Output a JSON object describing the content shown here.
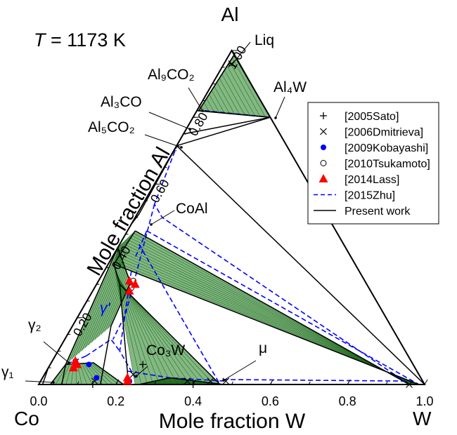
{
  "chart_data": {
    "type": "ternary-isothermal-section",
    "temperature_label": {
      "sym": "T",
      "rest": " = 1173 K"
    },
    "apex_labels": {
      "top": "Al",
      "bottom_left": "Co",
      "bottom_right": "W"
    },
    "xlabel": "Mole fraction W",
    "ylabel": "Mole fraction Al",
    "x_ticks": [
      "0.0",
      "0.2",
      "0.4",
      "0.6",
      "0.8",
      "1.0"
    ],
    "y_ticks": [
      {
        "label": "0.20",
        "value": 0.2
      },
      {
        "label": "0.40",
        "value": 0.4
      },
      {
        "label": "0.60",
        "value": 0.6
      },
      {
        "label": "0.80",
        "value": 0.8
      },
      {
        "label": "1.00",
        "value": 1.0
      }
    ],
    "phase_labels": [
      {
        "name": "Liq",
        "anchor": {
          "W": 0.005,
          "Al": 0.965
        }
      },
      {
        "name": "Al₉CO₂",
        "anchor": {
          "W": 0.0,
          "Al": 0.818
        }
      },
      {
        "name": "Al₄W",
        "anchor": {
          "W": 0.2,
          "Al": 0.8
        }
      },
      {
        "name": "Al₃CO",
        "anchor": {
          "W": 0.0,
          "Al": 0.75
        }
      },
      {
        "name": "Al₅CO₂",
        "anchor": {
          "W": 0.0,
          "Al": 0.715
        }
      },
      {
        "name": "CoAl",
        "anchor": {
          "W": 0.01,
          "Al": 0.5
        }
      },
      {
        "name": "γ₂",
        "anchor": {
          "W": 0.025,
          "Al": 0.12
        }
      },
      {
        "name": "γ₁",
        "anchor": {
          "W": 0.0,
          "Al": 0.01
        }
      },
      {
        "name": "γ'",
        "anchor": {
          "W": 0.125,
          "Al": 0.15
        }
      },
      {
        "name": "Co₃W",
        "anchor": {
          "W": 0.225,
          "Al": 0.005
        }
      },
      {
        "name": "μ",
        "anchor": {
          "W": 0.47,
          "Al": 0.01
        }
      }
    ],
    "legend": {
      "placement": "right",
      "entries": [
        {
          "label": "[2005Sato]",
          "marker": "plus",
          "color": "#000000"
        },
        {
          "label": "[2006Dmitrieva]",
          "marker": "cross",
          "color": "#000000"
        },
        {
          "label": "[2009Kobayashi]",
          "marker": "filled-circle",
          "color": "#0000ff"
        },
        {
          "label": "[2010Tsukamoto]",
          "marker": "open-circle",
          "color": "#000000"
        },
        {
          "label": "[2014Lass]",
          "marker": "filled-triangle",
          "color": "#ff0000"
        },
        {
          "label": "[2015Zhu]",
          "marker": "dashed-line",
          "color": "#0000ff"
        },
        {
          "label": "Present work",
          "marker": "solid-line",
          "color": "#000000"
        }
      ]
    },
    "tie_line_color": "#1e7d1e",
    "present_work_phase_boundaries": [
      [
        {
          "W": 0.0,
          "Al": 0.82
        },
        {
          "W": 0.005,
          "Al": 0.82
        },
        {
          "W": 0.013,
          "Al": 0.99
        },
        {
          "W": 0.0,
          "Al": 1.0
        }
      ],
      [
        {
          "W": 0.013,
          "Al": 0.99
        },
        {
          "W": 0.005,
          "Al": 0.82
        },
        {
          "W": 0.2,
          "Al": 0.8
        }
      ],
      [
        {
          "W": 0.0,
          "Al": 0.82
        },
        {
          "W": 0.2,
          "Al": 0.8
        }
      ],
      [
        {
          "W": 0.0,
          "Al": 0.75
        },
        {
          "W": 0.2,
          "Al": 0.8
        }
      ],
      [
        {
          "W": 0.0,
          "Al": 0.715
        },
        {
          "W": 0.2,
          "Al": 0.8
        }
      ],
      [
        {
          "W": 0.0,
          "Al": 0.715
        },
        {
          "W": 0.005,
          "Al": 0.51
        },
        {
          "W": 0.0,
          "Al": 0.48
        }
      ],
      [
        {
          "W": 0.0,
          "Al": 0.715
        },
        {
          "W": 1.0,
          "Al": 0.0
        }
      ],
      [
        {
          "W": 0.02,
          "Al": 0.46
        },
        {
          "W": 0.015,
          "Al": 0.36
        },
        {
          "W": 0.06,
          "Al": 0.3
        },
        {
          "W": 0.23,
          "Al": 0.005
        },
        {
          "W": 0.23,
          "Al": 0.0
        }
      ],
      [
        {
          "W": 0.02,
          "Al": 0.46
        },
        {
          "W": 0.96,
          "Al": 0.0
        },
        {
          "W": 1.0,
          "Al": 0.0
        }
      ],
      [
        {
          "W": 0.015,
          "Al": 0.36
        },
        {
          "W": 0.985,
          "Al": 0.0
        }
      ],
      [
        {
          "W": 0.06,
          "Al": 0.3
        },
        {
          "W": 0.47,
          "Al": 0.0
        }
      ],
      [
        {
          "W": 0.0,
          "Al": 0.41
        },
        {
          "W": 0.085,
          "Al": 0.305
        },
        {
          "W": 0.1,
          "Al": 0.175
        },
        {
          "W": 0.16,
          "Al": 0.0
        }
      ],
      [
        {
          "W": 0.0,
          "Al": 0.41
        },
        {
          "W": 0.04,
          "Al": 0.06
        },
        {
          "W": 0.06,
          "Al": 0.0
        }
      ],
      [
        {
          "W": 0.04,
          "Al": 0.06
        },
        {
          "W": 0.11,
          "Al": 0.065
        },
        {
          "W": 0.22,
          "Al": 0.0
        }
      ],
      [
        {
          "W": 0.04,
          "Al": 0.06
        },
        {
          "W": 0.03,
          "Al": 0.0
        }
      ],
      [
        {
          "W": 0.0,
          "Al": 0.05
        },
        {
          "W": 0.01,
          "Al": 0.0
        }
      ],
      [
        {
          "W": 0.26,
          "Al": 0.0
        },
        {
          "W": 0.33,
          "Al": 0.02
        },
        {
          "W": 0.48,
          "Al": 0.0
        }
      ]
    ],
    "present_work_tie_triangles": [
      {
        "corners": [
          {
            "W": 0.013,
            "Al": 0.99
          },
          {
            "W": 0.005,
            "Al": 0.82
          },
          {
            "W": 0.2,
            "Al": 0.8
          }
        ]
      },
      {
        "corners": [
          {
            "W": 0.02,
            "Al": 0.46
          },
          {
            "W": 0.015,
            "Al": 0.36
          },
          {
            "W": 0.985,
            "Al": 0.0
          },
          {
            "W": 0.96,
            "Al": 0.0
          }
        ]
      },
      {
        "corners": [
          {
            "W": 0.015,
            "Al": 0.36
          },
          {
            "W": 0.06,
            "Al": 0.3
          },
          {
            "W": 0.47,
            "Al": 0.0
          },
          {
            "W": 0.25,
            "Al": 0.0
          }
        ]
      },
      {
        "corners": [
          {
            "W": 0.0,
            "Al": 0.41
          },
          {
            "W": 0.085,
            "Al": 0.305
          },
          {
            "W": 0.1,
            "Al": 0.175
          },
          {
            "W": 0.04,
            "Al": 0.06
          }
        ]
      },
      {
        "corners": [
          {
            "W": 0.04,
            "Al": 0.06
          },
          {
            "W": 0.11,
            "Al": 0.065
          },
          {
            "W": 0.22,
            "Al": 0.0
          },
          {
            "W": 0.03,
            "Al": 0.0
          }
        ]
      },
      {
        "corners": [
          {
            "W": 0.02,
            "Al": 0.46
          },
          {
            "W": 0.015,
            "Al": 0.36
          },
          {
            "W": 0.0,
            "Al": 0.41
          }
        ]
      },
      {
        "corners": [
          {
            "W": 0.26,
            "Al": 0.0
          },
          {
            "W": 0.33,
            "Al": 0.02
          },
          {
            "W": 0.47,
            "Al": 0.0
          }
        ]
      }
    ],
    "zhu_2015_dashed_boundaries": [
      [
        {
          "W": 0.0,
          "Al": 0.72
        },
        {
          "W": 0.03,
          "Al": 0.54
        },
        {
          "W": 0.07,
          "Al": 0.5
        },
        {
          "W": 0.96,
          "Al": 0.0
        }
      ],
      [
        {
          "W": 0.03,
          "Al": 0.54
        },
        {
          "W": 0.12,
          "Al": 0.21
        },
        {
          "W": 0.125,
          "Al": 0.135
        }
      ],
      [
        {
          "W": 0.02,
          "Al": 0.82
        },
        {
          "W": 0.2,
          "Al": 0.8
        }
      ],
      [
        {
          "W": 0.05,
          "Al": 0.46
        },
        {
          "W": 0.985,
          "Al": 0.0
        }
      ],
      [
        {
          "W": 0.05,
          "Al": 0.42
        },
        {
          "W": 0.47,
          "Al": 0.0
        }
      ],
      [
        {
          "W": 0.07,
          "Al": 0.34
        },
        {
          "W": 0.16,
          "Al": 0.1
        },
        {
          "W": 0.24,
          "Al": 0.02
        }
      ],
      [
        {
          "W": 0.08,
          "Al": 0.085
        },
        {
          "W": 0.12,
          "Al": 0.135
        },
        {
          "W": 0.16,
          "Al": 0.1
        }
      ],
      [
        {
          "W": 0.21,
          "Al": 0.04
        },
        {
          "W": 0.33,
          "Al": 0.02
        },
        {
          "W": 0.48,
          "Al": 0.01
        }
      ],
      [
        {
          "W": 0.47,
          "Al": 0.015
        },
        {
          "W": 0.96,
          "Al": 0.01
        }
      ],
      [
        {
          "W": 0.08,
          "Al": 0.085
        },
        {
          "W": 0.04,
          "Al": 0.06
        }
      ],
      [
        {
          "W": 0.05,
          "Al": 0.46
        },
        {
          "W": 0.06,
          "Al": 0.38
        }
      ]
    ],
    "experimental_points": [
      {
        "dataset": "[2005Sato]",
        "marker": "plus",
        "W": 0.14,
        "Al": 0.0
      },
      {
        "dataset": "[2005Sato]",
        "marker": "plus",
        "W": 0.4,
        "Al": 0.0
      },
      {
        "dataset": "[2005Sato]",
        "marker": "plus",
        "W": 0.24,
        "Al": 0.06
      },
      {
        "dataset": "[2006Dmitrieva]",
        "marker": "cross",
        "W": 0.14,
        "Al": 0.01
      },
      {
        "dataset": "[2006Dmitrieva]",
        "marker": "cross",
        "W": 0.38,
        "Al": 0.01
      },
      {
        "dataset": "[2006Dmitrieva]",
        "marker": "cross",
        "W": 0.48,
        "Al": 0.01
      },
      {
        "dataset": "[2006Dmitrieva]",
        "marker": "cross",
        "W": 0.44,
        "Al": 0.01
      },
      {
        "dataset": "[2006Dmitrieva]",
        "marker": "cross",
        "W": 0.23,
        "Al": 0.03
      },
      {
        "dataset": "[2006Dmitrieva]",
        "marker": "cross",
        "W": 0.96,
        "Al": 0.0
      },
      {
        "dataset": "[2006Dmitrieva]",
        "marker": "cross",
        "W": 0.02,
        "Al": 0.96
      },
      {
        "dataset": "[2009Kobayashi]",
        "marker": "filled-circle",
        "W": 0.06,
        "Al": 0.07
      },
      {
        "dataset": "[2009Kobayashi]",
        "marker": "filled-circle",
        "W": 0.1,
        "Al": 0.06
      },
      {
        "dataset": "[2009Kobayashi]",
        "marker": "filled-circle",
        "W": 0.14,
        "Al": 0.02
      },
      {
        "dataset": "[2009Kobayashi]",
        "marker": "filled-circle",
        "W": 0.23,
        "Al": 0.01
      },
      {
        "dataset": "[2010Tsukamoto]",
        "marker": "open-circle",
        "W": 0.09,
        "Al": 0.31
      },
      {
        "dataset": "[2010Tsukamoto]",
        "marker": "open-circle",
        "W": 0.095,
        "Al": 0.29
      },
      {
        "dataset": "[2014Lass]",
        "marker": "filled-triangle",
        "W": 0.08,
        "Al": 0.31
      },
      {
        "dataset": "[2014Lass]",
        "marker": "filled-triangle",
        "W": 0.1,
        "Al": 0.3
      },
      {
        "dataset": "[2014Lass]",
        "marker": "filled-triangle",
        "W": 0.095,
        "Al": 0.28
      },
      {
        "dataset": "[2014Lass]",
        "marker": "filled-triangle",
        "W": 0.06,
        "Al": 0.07
      },
      {
        "dataset": "[2014Lass]",
        "marker": "filled-triangle",
        "W": 0.07,
        "Al": 0.06
      },
      {
        "dataset": "[2014Lass]",
        "marker": "filled-triangle",
        "W": 0.065,
        "Al": 0.05
      },
      {
        "dataset": "[2014Lass]",
        "marker": "filled-triangle",
        "W": 0.22,
        "Al": 0.02
      },
      {
        "dataset": "[2014Lass]",
        "marker": "filled-triangle",
        "W": 0.225,
        "Al": 0.01
      }
    ]
  }
}
